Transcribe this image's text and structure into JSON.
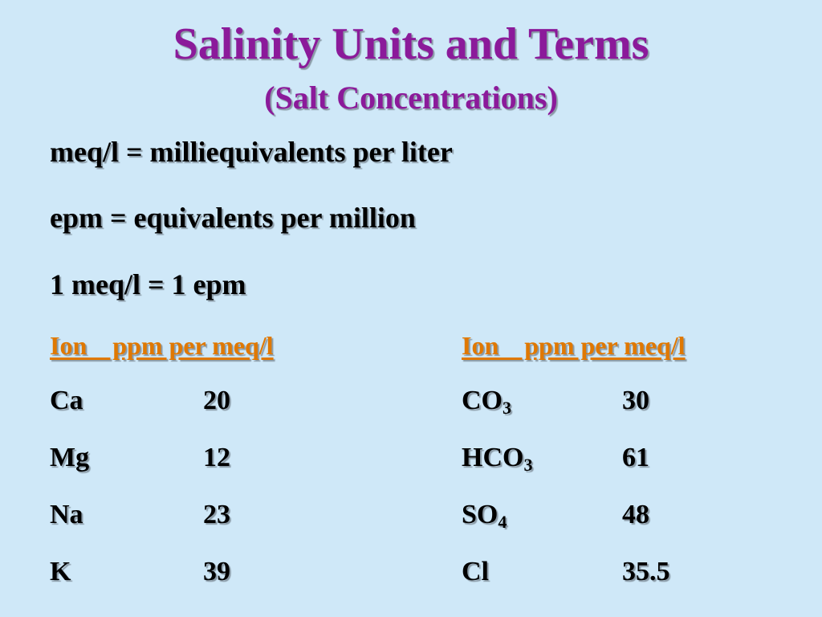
{
  "slide": {
    "title": "Salinity Units and Terms",
    "subtitle": "(Salt Concentrations)",
    "definitions": [
      "meq/l = milliequivalents per liter",
      "epm = equivalents per million",
      "1 meq/l = 1 epm"
    ],
    "table": {
      "left_header": "Ion    ppm per meq/l",
      "right_header": "Ion    ppm per meq/l",
      "left_rows": [
        {
          "ion": "Ca",
          "sub": "",
          "value": "20"
        },
        {
          "ion": "Mg",
          "sub": "",
          "value": "12"
        },
        {
          "ion": "Na",
          "sub": "",
          "value": "23"
        },
        {
          "ion": "K",
          "sub": "",
          "value": "39"
        }
      ],
      "right_rows": [
        {
          "ion": "CO",
          "sub": "3",
          "value": "30"
        },
        {
          "ion": "HCO",
          "sub": "3",
          "value": "61"
        },
        {
          "ion": "SO",
          "sub": "4",
          "value": "48"
        },
        {
          "ion": "Cl",
          "sub": "",
          "value": "35.5"
        }
      ]
    },
    "colors": {
      "background": "#cfe8f8",
      "title": "#8b1a9a",
      "header": "#e07800",
      "text": "#000000"
    }
  }
}
